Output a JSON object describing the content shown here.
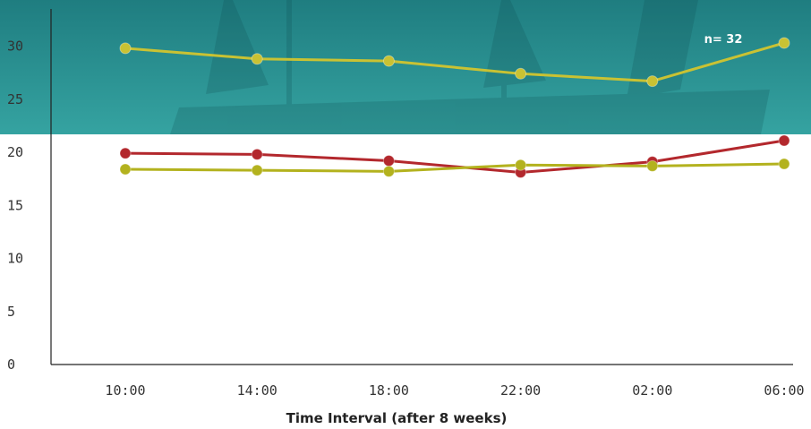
{
  "chart_data": {
    "type": "line",
    "categories": [
      "10:00",
      "14:00",
      "18:00",
      "22:00",
      "02:00",
      "06:00"
    ],
    "y_ticks": [
      "0",
      "5",
      "10",
      "15",
      "20",
      "25",
      "30"
    ],
    "ylim": [
      0,
      33
    ],
    "xlabel": "Time Interval (after 8 weeks)",
    "ylabel": "",
    "title": "",
    "annotation": "n= 32",
    "grid": false,
    "legend": "none",
    "series": [
      {
        "values": [
          29.8,
          28.8,
          28.6,
          27.4,
          26.7,
          30.3
        ],
        "color": "#c9c233"
      },
      {
        "values": [
          19.9,
          19.8,
          19.2,
          18.1,
          19.1,
          21.1
        ],
        "color": "#b3282d"
      },
      {
        "values": [
          18.4,
          18.3,
          18.2,
          18.8,
          18.7,
          18.9
        ],
        "color": "#b3b21e"
      }
    ],
    "background_band_color": "#2a8e8e"
  }
}
